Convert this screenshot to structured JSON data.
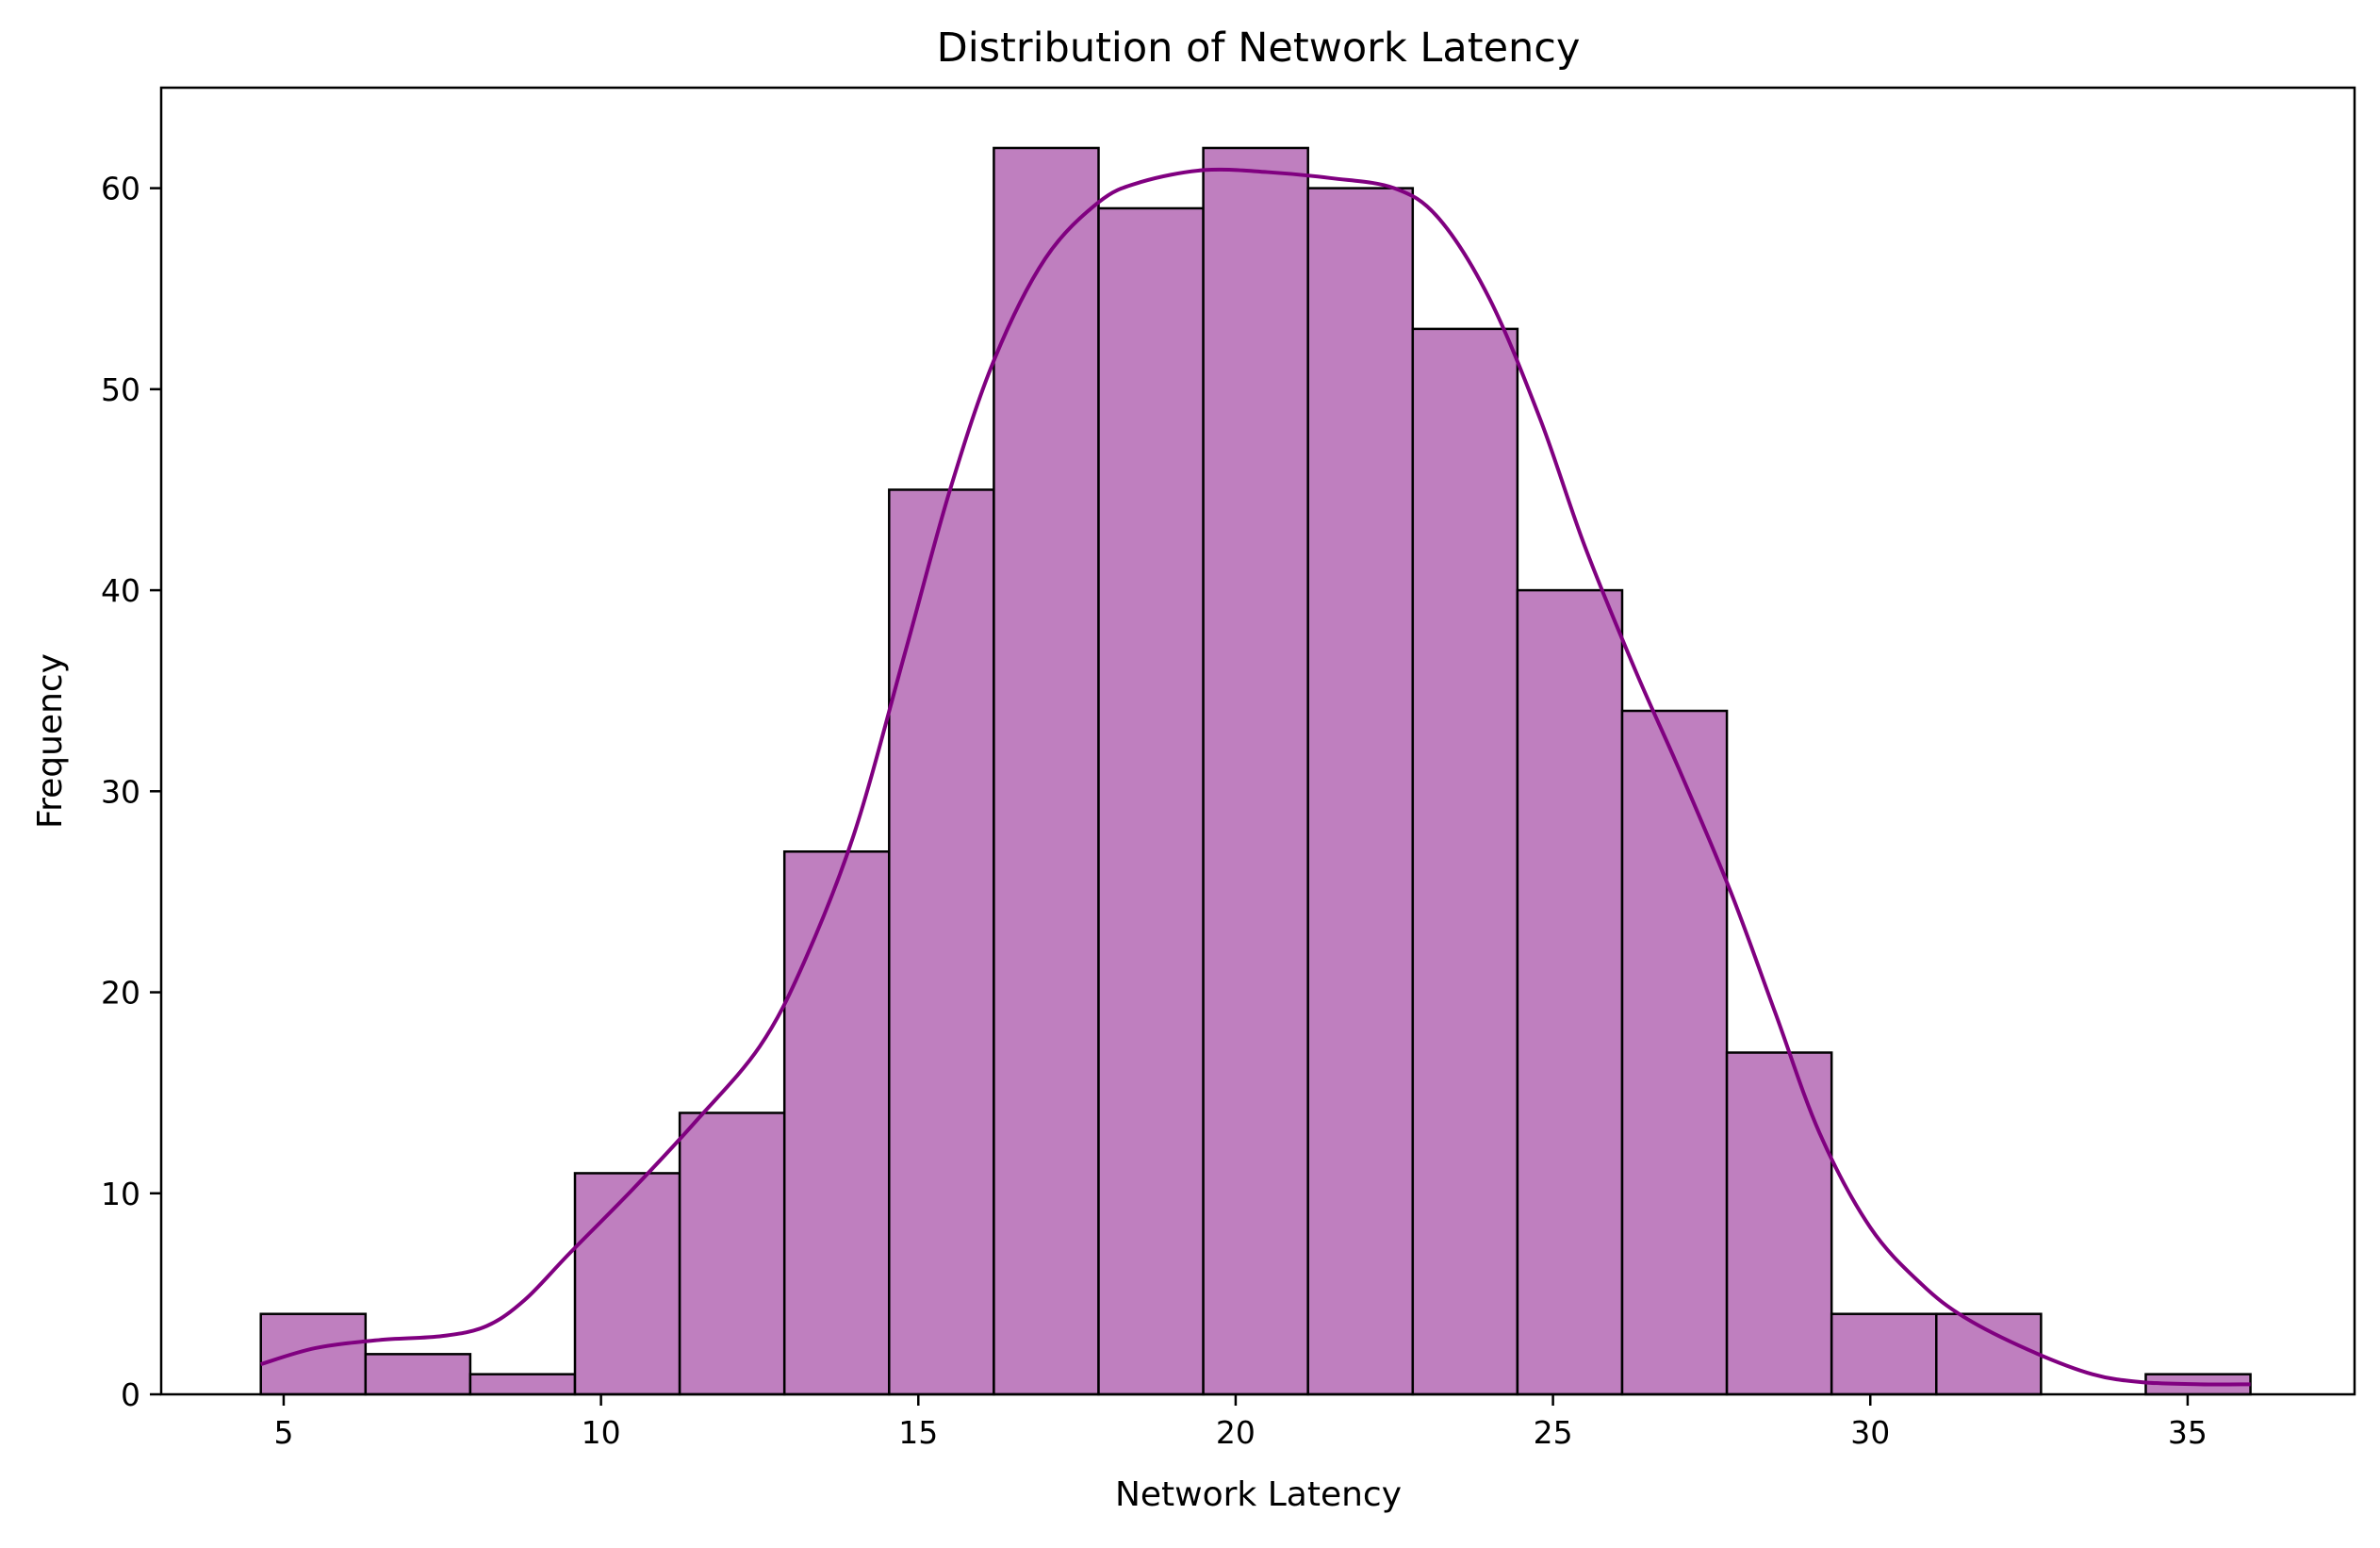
{
  "chart_data": {
    "type": "bar",
    "title": "Distribution of Network Latency",
    "xlabel": "Network Latency",
    "ylabel": "Frequency",
    "xlim": [
      3.07,
      37.63
    ],
    "ylim": [
      0,
      65
    ],
    "x_ticks": [
      5,
      10,
      15,
      20,
      25,
      30,
      35
    ],
    "y_ticks": [
      0,
      10,
      20,
      30,
      40,
      50,
      60
    ],
    "grid": false,
    "legend": "none",
    "bin_edges": [
      4.64,
      6.29,
      7.94,
      9.59,
      11.24,
      12.89,
      14.54,
      16.19,
      17.84,
      19.49,
      21.14,
      22.79,
      24.44,
      26.09,
      27.74,
      29.39,
      31.04,
      32.69,
      34.34,
      35.99
    ],
    "values": [
      4,
      2,
      1,
      11,
      14,
      27,
      45,
      62,
      59,
      62,
      60,
      53,
      40,
      34,
      17,
      4,
      4,
      0,
      1
    ],
    "kde": {
      "x": [
        4.64,
        5.5,
        6.5,
        7.5,
        8.2,
        8.8,
        9.5,
        10.5,
        11.5,
        12.5,
        13.2,
        14.0,
        14.8,
        15.5,
        16.2,
        17.0,
        17.84,
        18.5,
        19.5,
        20.5,
        21.5,
        22.5,
        23.2,
        24.0,
        24.8,
        25.5,
        26.3,
        27.0,
        27.8,
        28.5,
        29.2,
        30.0,
        30.8,
        31.5,
        32.5,
        33.5,
        34.3,
        35.2,
        35.99
      ],
      "y": [
        1.5,
        2.3,
        2.7,
        2.9,
        3.4,
        4.7,
        7.0,
        10.2,
        13.6,
        17.3,
        21.5,
        28.0,
        37.0,
        45.0,
        51.5,
        56.5,
        59.3,
        60.3,
        60.9,
        60.8,
        60.5,
        60.0,
        58.5,
        54.5,
        48.5,
        42.2,
        36.0,
        31.0,
        25.0,
        19.0,
        13.0,
        8.3,
        5.5,
        3.8,
        2.2,
        1.0,
        0.6,
        0.5,
        0.5
      ]
    },
    "colors": {
      "bar_fill": "#bf7fbf",
      "bar_edge": "#000000",
      "kde_line": "#800080"
    }
  }
}
